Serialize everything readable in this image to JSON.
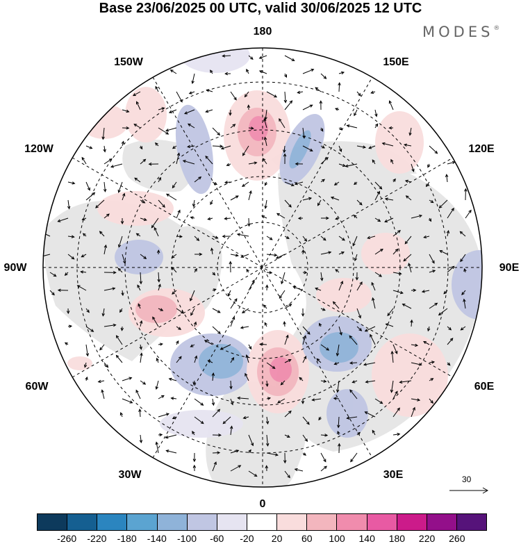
{
  "title": "Base 23/06/2025 00 UTC, valid 30/06/2025 12 UTC",
  "brand": "MODES",
  "brand_mark": "®",
  "longitude_labels": {
    "top": "180",
    "bottom": "0",
    "left": "90W",
    "right": "90E",
    "ul1": "150W",
    "ul2": "120W",
    "ur1": "150E",
    "ur2": "120E",
    "ll1": "60W",
    "ll2": "30W",
    "lr1": "60E",
    "lr2": "30E"
  },
  "reference_vector": {
    "value": "30"
  },
  "colorbar": {
    "colors": [
      "#0d3a5c",
      "#155f91",
      "#2b85bf",
      "#5ba4d1",
      "#8fb3d9",
      "#c0c6e3",
      "#e6e4f1",
      "#ffffff",
      "#f9dddd",
      "#f3b6be",
      "#f08cad",
      "#e85aa3",
      "#cc1b8a",
      "#930f8a",
      "#56137a"
    ],
    "labels": [
      "-260",
      "-220",
      "-180",
      "-140",
      "-100",
      "-60",
      "-20",
      "20",
      "60",
      "100",
      "140",
      "180",
      "220",
      "260"
    ]
  },
  "map_colors": {
    "land": "#e8e8e8",
    "ocean": "#ffffff",
    "grid": "#000000",
    "coast": "#333333"
  }
}
